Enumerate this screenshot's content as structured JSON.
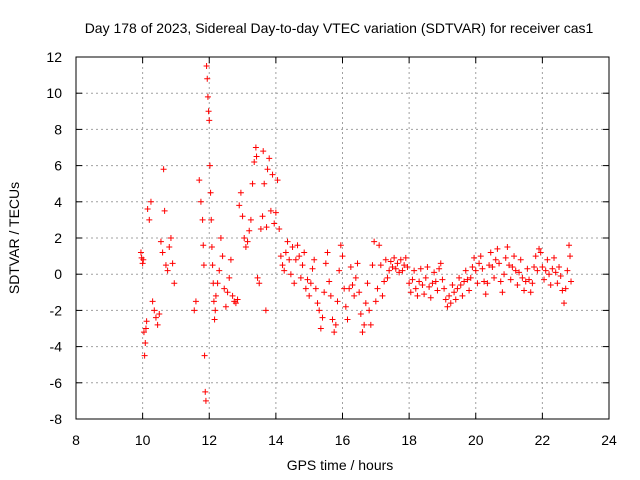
{
  "chart_data": {
    "type": "scatter",
    "title": "Day 178 of 2023, Sidereal Day-to-day VTEC variation (SDTVAR) for receiver cas1",
    "xlabel": "GPS time / hours",
    "ylabel": "SDTVAR / TECUs",
    "xlim": [
      8,
      24
    ],
    "ylim": [
      -8,
      12
    ],
    "xticks": [
      "8",
      "10",
      "12",
      "14",
      "16",
      "18",
      "20",
      "22",
      "24"
    ],
    "yticks": [
      "-8",
      "-6",
      "-4",
      "-2",
      "0",
      "2",
      "4",
      "6",
      "8",
      "10",
      "12"
    ],
    "grid": true,
    "marker": "+",
    "series": [
      {
        "name": "SDTVAR",
        "color": "#ff0000",
        "points": [
          [
            9.95,
            1.2
          ],
          [
            9.97,
            0.9
          ],
          [
            10.0,
            0.6
          ],
          [
            10.02,
            0.8
          ],
          [
            10.04,
            -3.2
          ],
          [
            10.06,
            -4.5
          ],
          [
            10.08,
            -3.8
          ],
          [
            10.1,
            -3.0
          ],
          [
            10.12,
            -2.6
          ],
          [
            10.15,
            3.6
          ],
          [
            10.2,
            3.0
          ],
          [
            10.25,
            4.0
          ],
          [
            10.3,
            -1.5
          ],
          [
            10.35,
            -2.0
          ],
          [
            10.4,
            -2.4
          ],
          [
            10.45,
            -2.8
          ],
          [
            10.5,
            -2.2
          ],
          [
            10.55,
            1.8
          ],
          [
            10.6,
            1.2
          ],
          [
            10.63,
            5.8
          ],
          [
            10.66,
            3.5
          ],
          [
            10.7,
            0.5
          ],
          [
            10.75,
            0.2
          ],
          [
            10.8,
            1.5
          ],
          [
            10.85,
            2.0
          ],
          [
            10.9,
            0.6
          ],
          [
            10.95,
            -0.5
          ],
          [
            11.55,
            -2.0
          ],
          [
            11.6,
            -1.5
          ],
          [
            11.7,
            5.2
          ],
          [
            11.75,
            4.0
          ],
          [
            11.8,
            3.0
          ],
          [
            11.82,
            1.6
          ],
          [
            11.84,
            0.5
          ],
          [
            11.86,
            -4.5
          ],
          [
            11.88,
            -6.5
          ],
          [
            11.9,
            -7.0
          ],
          [
            11.92,
            11.5
          ],
          [
            11.94,
            10.8
          ],
          [
            11.96,
            9.8
          ],
          [
            11.98,
            9.0
          ],
          [
            12.0,
            8.5
          ],
          [
            12.02,
            6.0
          ],
          [
            12.04,
            4.5
          ],
          [
            12.06,
            3.0
          ],
          [
            12.08,
            1.5
          ],
          [
            12.1,
            0.5
          ],
          [
            12.12,
            -0.5
          ],
          [
            12.14,
            -1.5
          ],
          [
            12.16,
            -2.5
          ],
          [
            12.18,
            -2.0
          ],
          [
            12.2,
            -1.2
          ],
          [
            12.25,
            -0.5
          ],
          [
            12.3,
            0.2
          ],
          [
            12.35,
            2.0
          ],
          [
            12.4,
            1.0
          ],
          [
            12.45,
            -0.8
          ],
          [
            12.5,
            -1.8
          ],
          [
            12.55,
            -1.0
          ],
          [
            12.6,
            -0.2
          ],
          [
            12.65,
            0.8
          ],
          [
            12.7,
            -1.2
          ],
          [
            12.75,
            -1.5
          ],
          [
            12.8,
            -1.6
          ],
          [
            12.85,
            -1.4
          ],
          [
            12.9,
            3.8
          ],
          [
            12.95,
            4.5
          ],
          [
            13.0,
            3.2
          ],
          [
            13.05,
            2.0
          ],
          [
            13.1,
            1.5
          ],
          [
            13.15,
            1.8
          ],
          [
            13.2,
            2.4
          ],
          [
            13.25,
            3.0
          ],
          [
            13.3,
            5.0
          ],
          [
            13.35,
            6.2
          ],
          [
            13.4,
            7.0
          ],
          [
            13.42,
            6.5
          ],
          [
            13.45,
            -0.2
          ],
          [
            13.5,
            -0.5
          ],
          [
            13.55,
            2.5
          ],
          [
            13.6,
            3.2
          ],
          [
            13.62,
            6.8
          ],
          [
            13.65,
            5.0
          ],
          [
            13.7,
            -2.0
          ],
          [
            13.72,
            2.6
          ],
          [
            13.75,
            5.8
          ],
          [
            13.8,
            6.4
          ],
          [
            13.85,
            3.5
          ],
          [
            13.9,
            5.5
          ],
          [
            13.95,
            2.8
          ],
          [
            14.0,
            3.4
          ],
          [
            14.05,
            5.2
          ],
          [
            14.1,
            2.5
          ],
          [
            14.15,
            1.0
          ],
          [
            14.2,
            0.5
          ],
          [
            14.25,
            0.2
          ],
          [
            14.3,
            1.2
          ],
          [
            14.35,
            1.8
          ],
          [
            14.4,
            0.8
          ],
          [
            14.45,
            0.0
          ],
          [
            14.5,
            1.5
          ],
          [
            14.55,
            -0.5
          ],
          [
            14.6,
            0.8
          ],
          [
            14.65,
            1.6
          ],
          [
            14.7,
            1.0
          ],
          [
            14.75,
            -0.2
          ],
          [
            14.8,
            0.5
          ],
          [
            14.85,
            1.2
          ],
          [
            14.9,
            -0.8
          ],
          [
            14.95,
            -0.3
          ],
          [
            15.0,
            -1.2
          ],
          [
            15.05,
            -0.5
          ],
          [
            15.1,
            0.3
          ],
          [
            15.15,
            0.8
          ],
          [
            15.2,
            -0.8
          ],
          [
            15.25,
            -1.6
          ],
          [
            15.3,
            -2.0
          ],
          [
            15.35,
            -3.0
          ],
          [
            15.4,
            -2.4
          ],
          [
            15.45,
            -1.0
          ],
          [
            15.5,
            0.6
          ],
          [
            15.55,
            1.2
          ],
          [
            15.6,
            -0.4
          ],
          [
            15.65,
            -1.2
          ],
          [
            15.7,
            -2.5
          ],
          [
            15.75,
            -3.2
          ],
          [
            15.8,
            -2.8
          ],
          [
            15.85,
            -1.5
          ],
          [
            15.9,
            0.2
          ],
          [
            15.95,
            1.6
          ],
          [
            16.0,
            1.0
          ],
          [
            16.05,
            -0.8
          ],
          [
            16.1,
            -1.8
          ],
          [
            16.15,
            -2.5
          ],
          [
            16.2,
            -0.8
          ],
          [
            16.25,
            0.4
          ],
          [
            16.3,
            -0.6
          ],
          [
            16.35,
            -1.2
          ],
          [
            16.4,
            -0.2
          ],
          [
            16.45,
            0.6
          ],
          [
            16.5,
            -1.0
          ],
          [
            16.55,
            -2.2
          ],
          [
            16.6,
            -3.2
          ],
          [
            16.65,
            -2.8
          ],
          [
            16.7,
            -1.6
          ],
          [
            16.75,
            -0.5
          ],
          [
            16.8,
            -2.0
          ],
          [
            16.85,
            -2.8
          ],
          [
            16.9,
            0.5
          ],
          [
            16.95,
            1.8
          ],
          [
            17.0,
            -1.5
          ],
          [
            17.05,
            -0.8
          ],
          [
            17.1,
            1.6
          ],
          [
            17.15,
            0.5
          ],
          [
            17.2,
            -1.2
          ],
          [
            17.25,
            -0.4
          ],
          [
            17.3,
            0.8
          ],
          [
            17.35,
            -0.2
          ],
          [
            17.4,
            0.2
          ],
          [
            17.45,
            0.7
          ],
          [
            17.5,
            0.4
          ],
          [
            17.55,
            0.9
          ],
          [
            17.6,
            0.3
          ],
          [
            17.65,
            0.6
          ],
          [
            17.7,
            0.1
          ],
          [
            17.75,
            0.8
          ],
          [
            17.8,
            0.2
          ],
          [
            17.85,
            0.5
          ],
          [
            17.9,
            0.9
          ],
          [
            17.95,
            0.4
          ],
          [
            18.0,
            -0.5
          ],
          [
            18.05,
            -1.0
          ],
          [
            18.1,
            -0.3
          ],
          [
            18.15,
            0.2
          ],
          [
            18.2,
            -0.8
          ],
          [
            18.25,
            -1.2
          ],
          [
            18.3,
            -0.4
          ],
          [
            18.35,
            0.3
          ],
          [
            18.4,
            -0.6
          ],
          [
            18.45,
            -1.1
          ],
          [
            18.5,
            -0.2
          ],
          [
            18.55,
            0.4
          ],
          [
            18.6,
            -0.7
          ],
          [
            18.65,
            -1.3
          ],
          [
            18.7,
            -0.5
          ],
          [
            18.75,
            0.1
          ],
          [
            18.8,
            -0.4
          ],
          [
            18.85,
            -0.9
          ],
          [
            18.9,
            0.3
          ],
          [
            18.95,
            0.6
          ],
          [
            19.0,
            -0.3
          ],
          [
            19.05,
            -0.8
          ],
          [
            19.1,
            -1.4
          ],
          [
            19.15,
            -1.8
          ],
          [
            19.2,
            -1.2
          ],
          [
            19.25,
            -1.6
          ],
          [
            19.3,
            -0.6
          ],
          [
            19.35,
            -1.0
          ],
          [
            19.4,
            -1.4
          ],
          [
            19.45,
            -0.8
          ],
          [
            19.5,
            -0.2
          ],
          [
            19.55,
            -0.6
          ],
          [
            19.6,
            -1.2
          ],
          [
            19.65,
            -0.4
          ],
          [
            19.7,
            0.2
          ],
          [
            19.75,
            -0.3
          ],
          [
            19.8,
            -0.9
          ],
          [
            19.85,
            -0.2
          ],
          [
            19.9,
            0.4
          ],
          [
            19.95,
            0.9
          ],
          [
            20.0,
            0.2
          ],
          [
            20.05,
            -0.5
          ],
          [
            20.1,
            0.6
          ],
          [
            20.15,
            1.0
          ],
          [
            20.2,
            0.3
          ],
          [
            20.25,
            -0.4
          ],
          [
            20.3,
            -1.1
          ],
          [
            20.35,
            -0.5
          ],
          [
            20.4,
            0.5
          ],
          [
            20.45,
            1.2
          ],
          [
            20.5,
            0.4
          ],
          [
            20.55,
            -0.2
          ],
          [
            20.6,
            0.8
          ],
          [
            20.65,
            1.4
          ],
          [
            20.7,
            0.6
          ],
          [
            20.75,
            -0.4
          ],
          [
            20.8,
            -1.0
          ],
          [
            20.85,
            0.0
          ],
          [
            20.9,
            0.9
          ],
          [
            20.95,
            1.5
          ],
          [
            21.0,
            0.5
          ],
          [
            21.05,
            -0.3
          ],
          [
            21.1,
            0.4
          ],
          [
            21.15,
            1.0
          ],
          [
            21.2,
            0.2
          ],
          [
            21.25,
            -0.6
          ],
          [
            21.3,
            0.1
          ],
          [
            21.35,
            0.8
          ],
          [
            21.4,
            -0.2
          ],
          [
            21.45,
            -0.9
          ],
          [
            21.5,
            -0.4
          ],
          [
            21.55,
            0.3
          ],
          [
            21.6,
            -0.3
          ],
          [
            21.65,
            -1.0
          ],
          [
            21.7,
            -0.5
          ],
          [
            21.75,
            0.4
          ],
          [
            21.8,
            1.0
          ],
          [
            21.85,
            0.2
          ],
          [
            21.9,
            1.4
          ],
          [
            21.95,
            1.2
          ],
          [
            22.0,
            0.4
          ],
          [
            22.05,
            -0.3
          ],
          [
            22.1,
            0.2
          ],
          [
            22.15,
            0.8
          ],
          [
            22.2,
            0.0
          ],
          [
            22.25,
            -0.6
          ],
          [
            22.3,
            0.3
          ],
          [
            22.35,
            0.9
          ],
          [
            22.4,
            0.1
          ],
          [
            22.45,
            -0.5
          ],
          [
            22.5,
            0.4
          ],
          [
            22.55,
            -0.1
          ],
          [
            22.6,
            -0.9
          ],
          [
            22.65,
            -1.6
          ],
          [
            22.7,
            -0.8
          ],
          [
            22.75,
            0.2
          ],
          [
            22.8,
            1.6
          ],
          [
            22.83,
            1.0
          ],
          [
            22.86,
            -0.4
          ]
        ]
      }
    ]
  }
}
